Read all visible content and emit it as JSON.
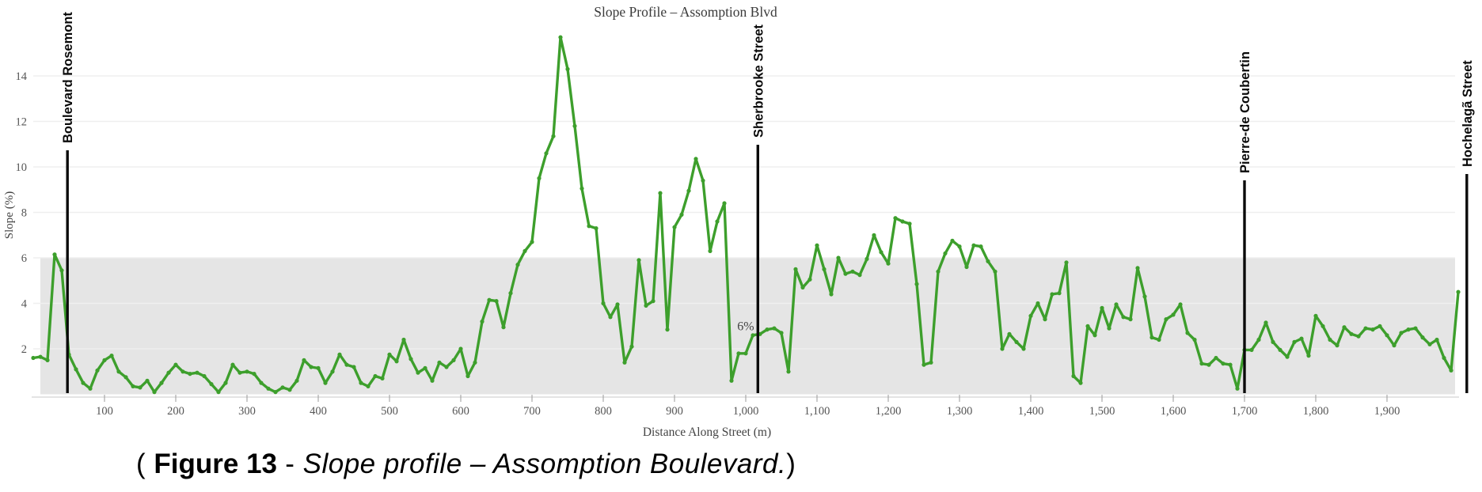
{
  "caption": {
    "open": "( ",
    "figure_label": "Figure 13",
    "separator": " - ",
    "text": "Slope profile – Assomption Boulevard.",
    "close": ")"
  },
  "chart_data": {
    "type": "line",
    "title": "Slope Profile – Assomption Blvd",
    "xlabel": "Distance Along Street (m)",
    "ylabel": "Slope (%)",
    "xlim": [
      0,
      2000
    ],
    "ylim": [
      0,
      16
    ],
    "x_ticks": [
      100,
      200,
      300,
      400,
      500,
      600,
      700,
      800,
      900,
      1000,
      1100,
      1200,
      1300,
      1400,
      1500,
      1600,
      1700,
      1800,
      1900
    ],
    "y_ticks": [
      2,
      4,
      6,
      8,
      10,
      12,
      14
    ],
    "grid": true,
    "legend": false,
    "line_color": "#3d9f2c",
    "band": {
      "from": 0,
      "to": 6,
      "label": "6%",
      "color": "#e5e5e5",
      "label_anchor_m": 988
    },
    "street_markers": [
      {
        "label": "Boulevard Rosemont",
        "position_m": 48
      },
      {
        "label": "Sherbrooke Street",
        "position_m": 1017
      },
      {
        "label": "Pierre-de Coubertin",
        "position_m": 1700
      },
      {
        "label": "Hochelagã Street",
        "position_m": 2012
      }
    ],
    "series": [
      {
        "name": "Slope (%)",
        "x_start": 0,
        "x_step": 10,
        "values": [
          1.6,
          1.65,
          1.5,
          6.15,
          5.45,
          1.75,
          1.1,
          0.5,
          0.25,
          1.05,
          1.5,
          1.7,
          1.0,
          0.75,
          0.35,
          0.3,
          0.6,
          0.1,
          0.5,
          0.95,
          1.3,
          1.0,
          0.9,
          0.95,
          0.8,
          0.45,
          0.1,
          0.5,
          1.3,
          0.95,
          1.0,
          0.9,
          0.5,
          0.25,
          0.1,
          0.3,
          0.2,
          0.6,
          1.5,
          1.2,
          1.15,
          0.5,
          1.0,
          1.75,
          1.3,
          1.2,
          0.5,
          0.35,
          0.8,
          0.7,
          1.75,
          1.45,
          2.4,
          1.55,
          0.95,
          1.15,
          0.6,
          1.4,
          1.2,
          1.5,
          2.0,
          0.8,
          1.4,
          3.2,
          4.15,
          4.1,
          2.95,
          4.45,
          5.7,
          6.3,
          6.7,
          9.5,
          10.6,
          11.35,
          15.7,
          14.3,
          11.8,
          9.05,
          7.4,
          7.3,
          4.0,
          3.4,
          3.95,
          1.4,
          2.1,
          5.9,
          3.9,
          4.1,
          8.85,
          2.85,
          7.35,
          7.9,
          8.95,
          10.35,
          9.4,
          6.3,
          7.6,
          8.4,
          0.6,
          1.8,
          1.8,
          2.6,
          2.65,
          2.85,
          2.9,
          2.7,
          1.0,
          5.5,
          4.7,
          5.05,
          6.55,
          5.5,
          4.4,
          6.0,
          5.3,
          5.4,
          5.25,
          5.95,
          7.0,
          6.25,
          5.75,
          7.75,
          7.6,
          7.5,
          4.85,
          1.3,
          1.4,
          5.4,
          6.2,
          6.75,
          6.5,
          5.6,
          6.55,
          6.5,
          5.85,
          5.4,
          2.0,
          2.65,
          2.3,
          2.0,
          3.45,
          4.0,
          3.3,
          4.4,
          4.45,
          5.8,
          0.8,
          0.5,
          3.0,
          2.6,
          3.8,
          2.9,
          3.95,
          3.4,
          3.3,
          5.55,
          4.3,
          2.5,
          2.4,
          3.3,
          3.5,
          3.95,
          2.7,
          2.4,
          1.35,
          1.3,
          1.6,
          1.35,
          1.3,
          0.25,
          1.95,
          1.95,
          2.4,
          3.15,
          2.3,
          1.95,
          1.65,
          2.3,
          2.45,
          1.7,
          3.45,
          3.0,
          2.4,
          2.15,
          2.95,
          2.65,
          2.55,
          2.9,
          2.85,
          3.0,
          2.6,
          2.15,
          2.7,
          2.85,
          2.9,
          2.5,
          2.2,
          2.4,
          1.6,
          1.05,
          4.5
        ]
      }
    ]
  }
}
